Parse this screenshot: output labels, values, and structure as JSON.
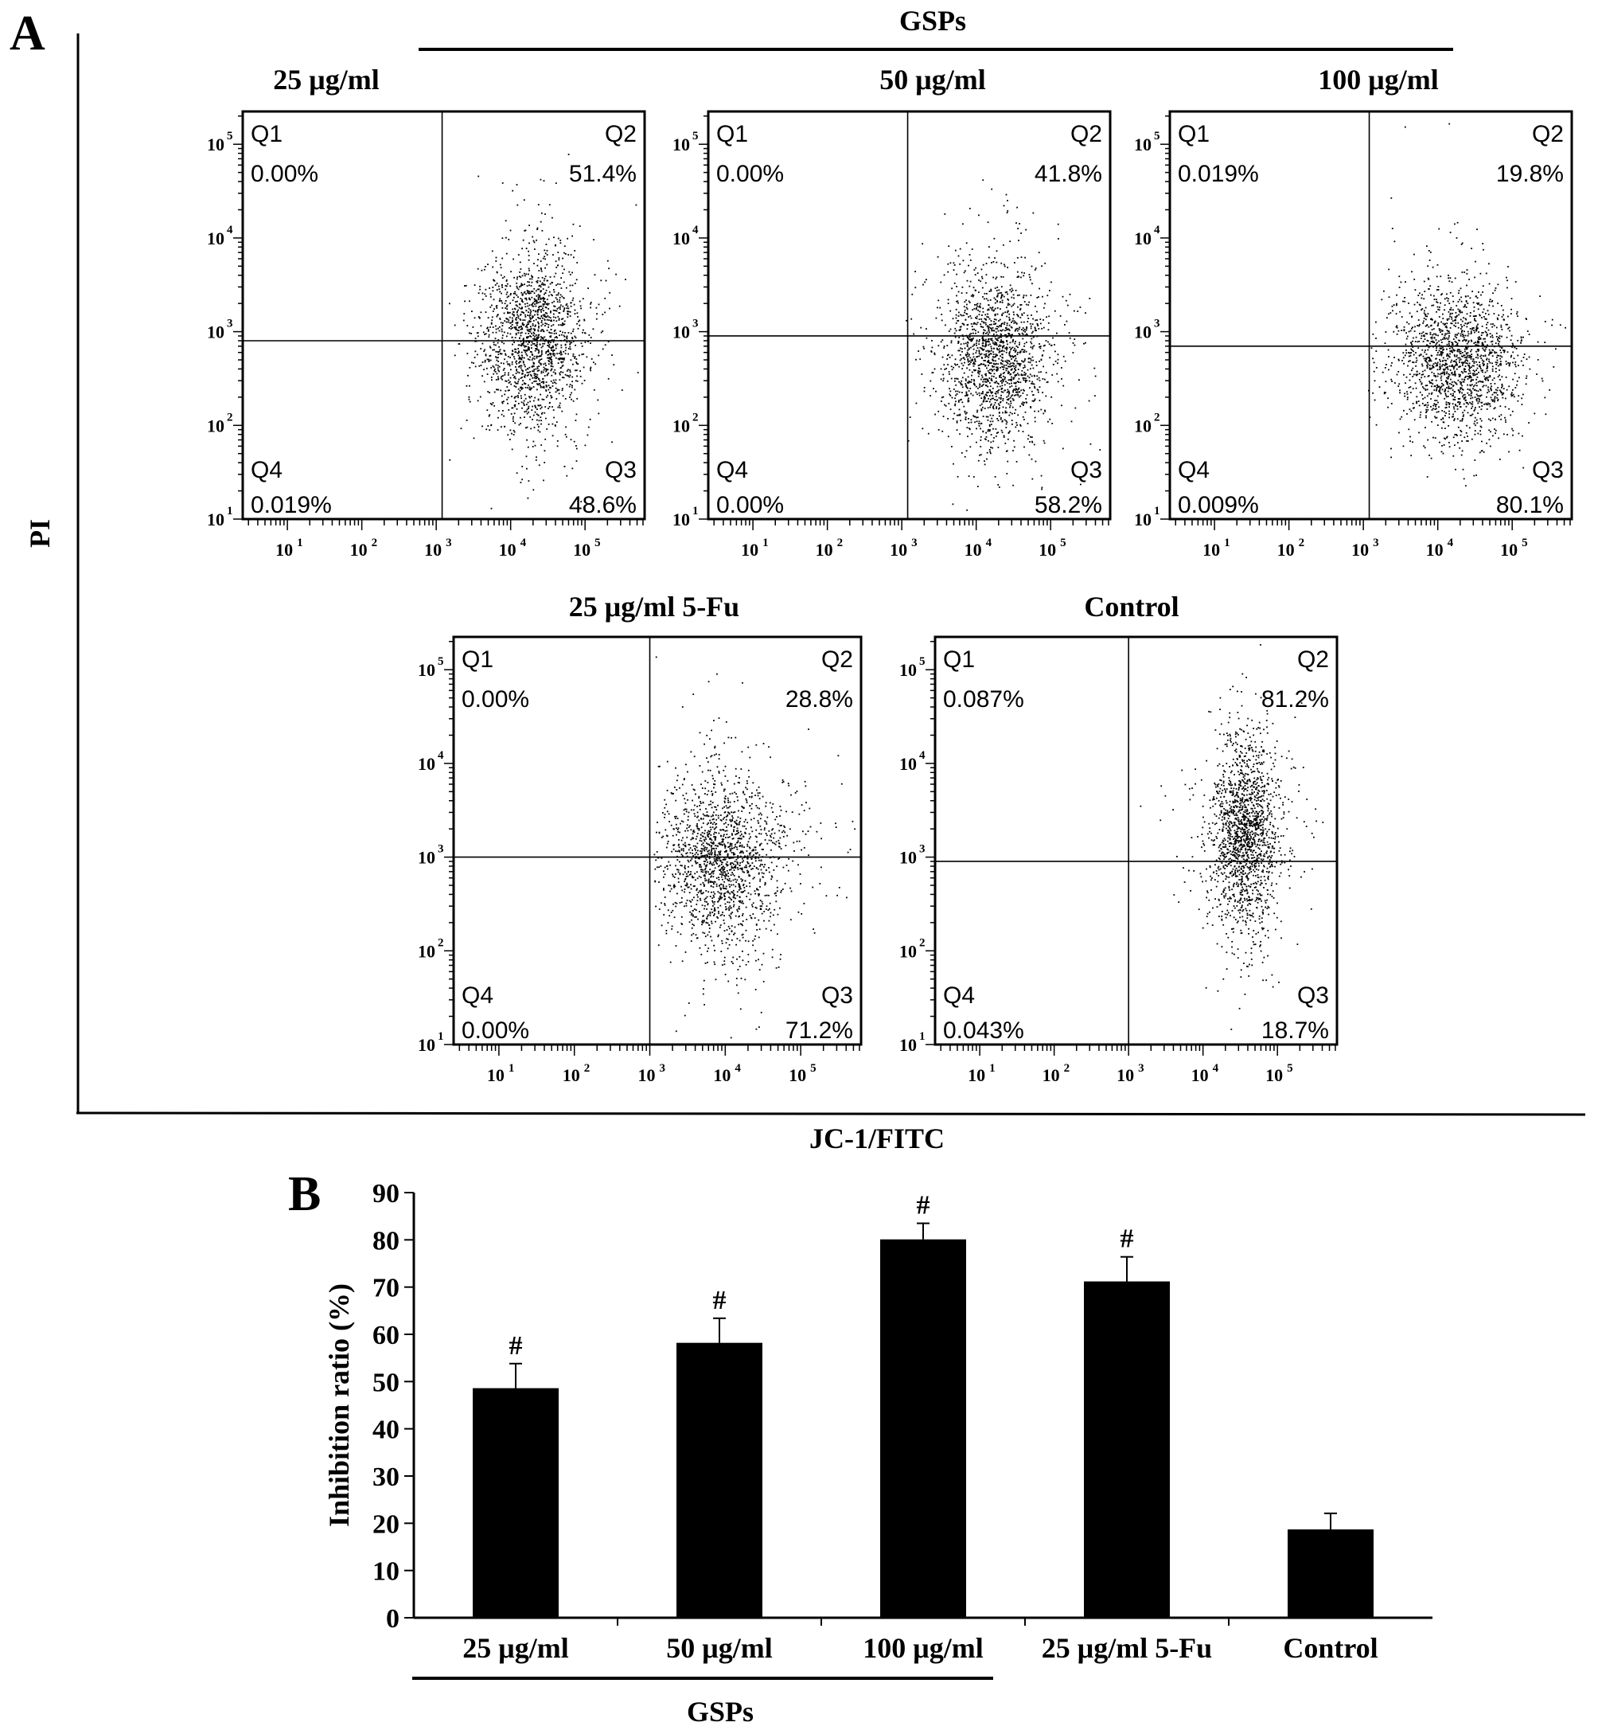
{
  "panel_a": {
    "label": "A",
    "group_label": "GSPs",
    "y_axis_label": "PI",
    "x_axis_label": "JC-1/FITC"
  },
  "panel_b": {
    "label": "B",
    "group_label": "GSPs"
  },
  "chart_data": [
    {
      "type": "scatter",
      "title": "25 μg/ml",
      "xscale": "log",
      "yscale": "log",
      "x_ticks": [
        "10",
        "10",
        "10",
        "10",
        "10"
      ],
      "x_tick_exponents": [
        "1",
        "2",
        "3",
        "4",
        "5"
      ],
      "y_ticks": [
        "10",
        "10",
        "10",
        "10",
        "10"
      ],
      "y_tick_exponents": [
        "1",
        "2",
        "3",
        "4",
        "5"
      ],
      "quadrants": [
        {
          "name": "Q1",
          "value": "0.00%"
        },
        {
          "name": "Q2",
          "value": "51.4%"
        },
        {
          "name": "Q3",
          "value": "48.6%"
        },
        {
          "name": "Q4",
          "value": "0.019%"
        }
      ],
      "gate": {
        "x": 1200,
        "y": 800
      }
    },
    {
      "type": "scatter",
      "title": "50 μg/ml",
      "xscale": "log",
      "yscale": "log",
      "x_ticks": [
        "10",
        "10",
        "10",
        "10",
        "10"
      ],
      "x_tick_exponents": [
        "1",
        "2",
        "3",
        "4",
        "5"
      ],
      "y_ticks": [
        "10",
        "10",
        "10",
        "10",
        "10"
      ],
      "y_tick_exponents": [
        "1",
        "2",
        "3",
        "4",
        "5"
      ],
      "quadrants": [
        {
          "name": "Q1",
          "value": "0.00%"
        },
        {
          "name": "Q2",
          "value": "41.8%"
        },
        {
          "name": "Q3",
          "value": "58.2%"
        },
        {
          "name": "Q4",
          "value": "0.00%"
        }
      ],
      "gate": {
        "x": 1200,
        "y": 900
      }
    },
    {
      "type": "scatter",
      "title": "100 μg/ml",
      "xscale": "log",
      "yscale": "log",
      "x_ticks": [
        "10",
        "10",
        "10",
        "10",
        "10"
      ],
      "x_tick_exponents": [
        "1",
        "2",
        "3",
        "4",
        "5"
      ],
      "y_ticks": [
        "10",
        "10",
        "10",
        "10",
        "10"
      ],
      "y_tick_exponents": [
        "1",
        "2",
        "3",
        "4",
        "5"
      ],
      "quadrants": [
        {
          "name": "Q1",
          "value": "0.019%"
        },
        {
          "name": "Q2",
          "value": "19.8%"
        },
        {
          "name": "Q3",
          "value": "80.1%"
        },
        {
          "name": "Q4",
          "value": "0.009%"
        }
      ],
      "gate": {
        "x": 1200,
        "y": 700
      }
    },
    {
      "type": "scatter",
      "title": "25 μg/ml 5-Fu",
      "xscale": "log",
      "yscale": "log",
      "x_ticks": [
        "10",
        "10",
        "10",
        "10",
        "10"
      ],
      "x_tick_exponents": [
        "1",
        "2",
        "3",
        "4",
        "5"
      ],
      "y_ticks": [
        "10",
        "10",
        "10",
        "10",
        "10"
      ],
      "y_tick_exponents": [
        "1",
        "2",
        "3",
        "4",
        "5"
      ],
      "quadrants": [
        {
          "name": "Q1",
          "value": "0.00%"
        },
        {
          "name": "Q2",
          "value": "28.8%"
        },
        {
          "name": "Q3",
          "value": "71.2%"
        },
        {
          "name": "Q4",
          "value": "0.00%"
        }
      ],
      "gate": {
        "x": 1000,
        "y": 1000
      }
    },
    {
      "type": "scatter",
      "title": "Control",
      "xscale": "log",
      "yscale": "log",
      "x_ticks": [
        "10",
        "10",
        "10",
        "10",
        "10"
      ],
      "x_tick_exponents": [
        "1",
        "2",
        "3",
        "4",
        "5"
      ],
      "y_ticks": [
        "10",
        "10",
        "10",
        "10",
        "10"
      ],
      "y_tick_exponents": [
        "1",
        "2",
        "3",
        "4",
        "5"
      ],
      "quadrants": [
        {
          "name": "Q1",
          "value": "0.087%"
        },
        {
          "name": "Q2",
          "value": "81.2%"
        },
        {
          "name": "Q3",
          "value": "18.7%"
        },
        {
          "name": "Q4",
          "value": "0.043%"
        }
      ],
      "gate": {
        "x": 1000,
        "y": 900
      }
    },
    {
      "type": "bar",
      "categories": [
        "25 μg/ml",
        "50 μg/ml",
        "100 μg/ml",
        "25 μg/ml 5-Fu",
        "Control"
      ],
      "values": [
        48.6,
        58.2,
        80.1,
        71.2,
        18.7
      ],
      "errors": [
        5.2,
        5.2,
        3.4,
        5.2,
        3.4
      ],
      "annotations": [
        "#",
        "#",
        "#",
        "#",
        ""
      ],
      "ylabel": "Inhibition ratio (%)",
      "ylim": [
        0,
        90
      ],
      "yticks": [
        0,
        10,
        20,
        30,
        40,
        50,
        60,
        70,
        80,
        90
      ],
      "bar_color": "#000000"
    }
  ]
}
